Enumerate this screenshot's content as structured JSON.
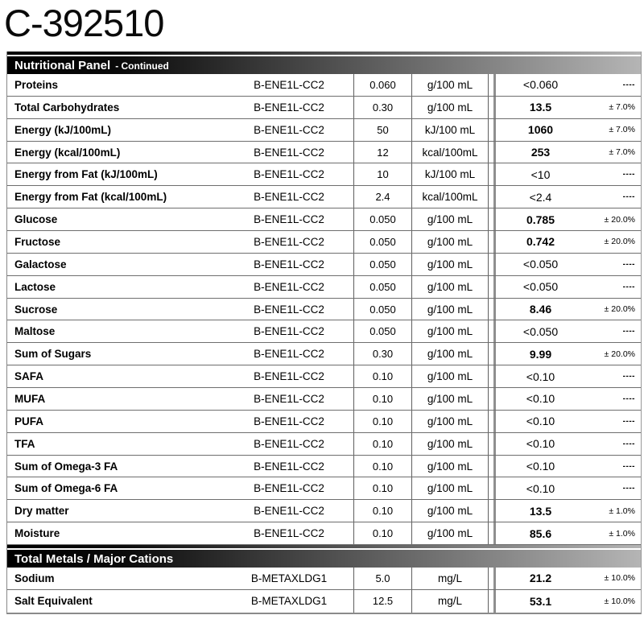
{
  "page_title": "C-392510",
  "colors": {
    "band_text": "#ffffff",
    "band_gradient_start": "#000000",
    "band_gradient_end": "#b5b5b5",
    "row_border": "#6e6e6e",
    "thick_result_divider": "#8f8f8f",
    "text": "#000000"
  },
  "table": {
    "sections": [
      {
        "header": {
          "title": "Nutritional Panel",
          "subtitle": "- Continued"
        },
        "rows": [
          {
            "parameter": "Proteins",
            "method": "B-ENE1L-CC2",
            "loq": "0.060",
            "unit": "g/100 mL",
            "result": "<0.060",
            "uncertainty": "----",
            "quantified": false
          },
          {
            "parameter": "Total Carbohydrates",
            "method": "B-ENE1L-CC2",
            "loq": "0.30",
            "unit": "g/100 mL",
            "result": "13.5",
            "uncertainty": "± 7.0%",
            "quantified": true
          },
          {
            "parameter": "Energy (kJ/100mL)",
            "method": "B-ENE1L-CC2",
            "loq": "50",
            "unit": "kJ/100 mL",
            "result": "1060",
            "uncertainty": "± 7.0%",
            "quantified": true
          },
          {
            "parameter": "Energy (kcal/100mL)",
            "method": "B-ENE1L-CC2",
            "loq": "12",
            "unit": "kcal/100mL",
            "result": "253",
            "uncertainty": "± 7.0%",
            "quantified": true
          },
          {
            "parameter": "Energy from Fat (kJ/100mL)",
            "method": "B-ENE1L-CC2",
            "loq": "10",
            "unit": "kJ/100 mL",
            "result": "<10",
            "uncertainty": "----",
            "quantified": false
          },
          {
            "parameter": "Energy from Fat (kcal/100mL)",
            "method": "B-ENE1L-CC2",
            "loq": "2.4",
            "unit": "kcal/100mL",
            "result": "<2.4",
            "uncertainty": "----",
            "quantified": false
          },
          {
            "parameter": "Glucose",
            "method": "B-ENE1L-CC2",
            "loq": "0.050",
            "unit": "g/100 mL",
            "result": "0.785",
            "uncertainty": "± 20.0%",
            "quantified": true
          },
          {
            "parameter": "Fructose",
            "method": "B-ENE1L-CC2",
            "loq": "0.050",
            "unit": "g/100 mL",
            "result": "0.742",
            "uncertainty": "± 20.0%",
            "quantified": true
          },
          {
            "parameter": "Galactose",
            "method": "B-ENE1L-CC2",
            "loq": "0.050",
            "unit": "g/100 mL",
            "result": "<0.050",
            "uncertainty": "----",
            "quantified": false
          },
          {
            "parameter": "Lactose",
            "method": "B-ENE1L-CC2",
            "loq": "0.050",
            "unit": "g/100 mL",
            "result": "<0.050",
            "uncertainty": "----",
            "quantified": false
          },
          {
            "parameter": "Sucrose",
            "method": "B-ENE1L-CC2",
            "loq": "0.050",
            "unit": "g/100 mL",
            "result": "8.46",
            "uncertainty": "± 20.0%",
            "quantified": true
          },
          {
            "parameter": "Maltose",
            "method": "B-ENE1L-CC2",
            "loq": "0.050",
            "unit": "g/100 mL",
            "result": "<0.050",
            "uncertainty": "----",
            "quantified": false
          },
          {
            "parameter": "Sum of Sugars",
            "method": "B-ENE1L-CC2",
            "loq": "0.30",
            "unit": "g/100 mL",
            "result": "9.99",
            "uncertainty": "± 20.0%",
            "quantified": true
          },
          {
            "parameter": "SAFA",
            "method": "B-ENE1L-CC2",
            "loq": "0.10",
            "unit": "g/100 mL",
            "result": "<0.10",
            "uncertainty": "----",
            "quantified": false
          },
          {
            "parameter": "MUFA",
            "method": "B-ENE1L-CC2",
            "loq": "0.10",
            "unit": "g/100 mL",
            "result": "<0.10",
            "uncertainty": "----",
            "quantified": false
          },
          {
            "parameter": "PUFA",
            "method": "B-ENE1L-CC2",
            "loq": "0.10",
            "unit": "g/100 mL",
            "result": "<0.10",
            "uncertainty": "----",
            "quantified": false
          },
          {
            "parameter": "TFA",
            "method": "B-ENE1L-CC2",
            "loq": "0.10",
            "unit": "g/100 mL",
            "result": "<0.10",
            "uncertainty": "----",
            "quantified": false
          },
          {
            "parameter": "Sum of Omega-3 FA",
            "method": "B-ENE1L-CC2",
            "loq": "0.10",
            "unit": "g/100 mL",
            "result": "<0.10",
            "uncertainty": "----",
            "quantified": false
          },
          {
            "parameter": "Sum of Omega-6 FA",
            "method": "B-ENE1L-CC2",
            "loq": "0.10",
            "unit": "g/100 mL",
            "result": "<0.10",
            "uncertainty": "----",
            "quantified": false
          },
          {
            "parameter": "Dry matter",
            "method": "B-ENE1L-CC2",
            "loq": "0.10",
            "unit": "g/100 mL",
            "result": "13.5",
            "uncertainty": "± 1.0%",
            "quantified": true
          },
          {
            "parameter": "Moisture",
            "method": "B-ENE1L-CC2",
            "loq": "0.10",
            "unit": "g/100 mL",
            "result": "85.6",
            "uncertainty": "± 1.0%",
            "quantified": true
          }
        ]
      },
      {
        "header": {
          "title": "Total Metals / Major Cations",
          "subtitle": ""
        },
        "rows": [
          {
            "parameter": "Sodium",
            "method": "B-METAXLDG1",
            "loq": "5.0",
            "unit": "mg/L",
            "result": "21.2",
            "uncertainty": "± 10.0%",
            "quantified": true
          },
          {
            "parameter": "Salt Equivalent",
            "method": "B-METAXLDG1",
            "loq": "12.5",
            "unit": "mg/L",
            "result": "53.1",
            "uncertainty": "± 10.0%",
            "quantified": true
          }
        ]
      }
    ]
  }
}
